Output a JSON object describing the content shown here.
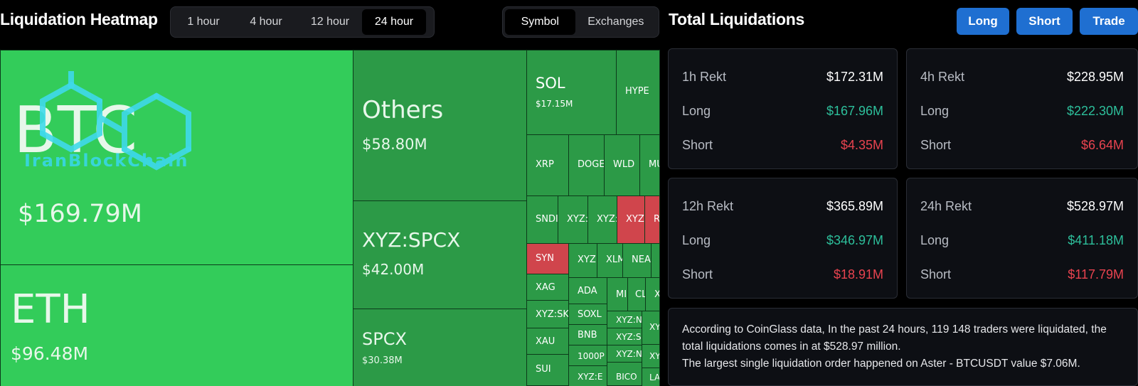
{
  "heatmap": {
    "title": "Liquidation Heatmap",
    "time_options": [
      "1 hour",
      "4 hour",
      "12 hour",
      "24 hour"
    ],
    "time_selected": "24 hour",
    "mode_options": [
      "Symbol",
      "Exchanges"
    ],
    "mode_selected": "Symbol",
    "watermark": "IranBlockChain",
    "tiles": [
      {
        "symbol": "BTC",
        "value": "$169.79M"
      },
      {
        "symbol": "ETH",
        "value": "$96.48M"
      },
      {
        "symbol": "Others",
        "value": "$58.80M"
      },
      {
        "symbol": "XYZ:SPCX",
        "value": "$42.00M"
      },
      {
        "symbol": "SPCX",
        "value": "$30.38M"
      },
      {
        "symbol": "SOL",
        "value": "$17.15M"
      },
      {
        "symbol": "HYPE",
        "value": ""
      },
      {
        "symbol": "XRP",
        "value": ""
      },
      {
        "symbol": "DOGE",
        "value": ""
      },
      {
        "symbol": "WLD",
        "value": ""
      },
      {
        "symbol": "MU",
        "value": ""
      },
      {
        "symbol": "SNDI",
        "value": ""
      },
      {
        "symbol": "XYZ:",
        "value": ""
      },
      {
        "symbol": "XYZ:",
        "value": ""
      },
      {
        "symbol": "XYZ:",
        "value": ""
      },
      {
        "symbol": "R",
        "value": ""
      },
      {
        "symbol": "SYN",
        "value": ""
      },
      {
        "symbol": "XYZ",
        "value": ""
      },
      {
        "symbol": "XLM",
        "value": ""
      },
      {
        "symbol": "NEA",
        "value": ""
      },
      {
        "symbol": "XAG",
        "value": ""
      },
      {
        "symbol": "ADA",
        "value": ""
      },
      {
        "symbol": "MI",
        "value": ""
      },
      {
        "symbol": "CL",
        "value": ""
      },
      {
        "symbol": "X",
        "value": ""
      },
      {
        "symbol": "XYZ:SK",
        "value": ""
      },
      {
        "symbol": "SOXL",
        "value": ""
      },
      {
        "symbol": "XYZ:N",
        "value": ""
      },
      {
        "symbol": "XY",
        "value": ""
      },
      {
        "symbol": "XAU",
        "value": ""
      },
      {
        "symbol": "BNB",
        "value": ""
      },
      {
        "symbol": "XYZ:S",
        "value": ""
      },
      {
        "symbol": "1000P",
        "value": ""
      },
      {
        "symbol": "XYZ:N",
        "value": ""
      },
      {
        "symbol": "XY",
        "value": ""
      },
      {
        "symbol": "SUI",
        "value": ""
      },
      {
        "symbol": "XYZ:E",
        "value": ""
      },
      {
        "symbol": "BICO",
        "value": ""
      },
      {
        "symbol": "LA",
        "value": ""
      }
    ]
  },
  "total": {
    "title": "Total Liquidations",
    "buttons": {
      "long": "Long",
      "short": "Short",
      "trade": "Trade"
    },
    "cards": [
      {
        "label": "1h Rekt",
        "total": "$172.31M",
        "long_label": "Long",
        "long": "$167.96M",
        "short_label": "Short",
        "short": "$4.35M"
      },
      {
        "label": "4h Rekt",
        "total": "$228.95M",
        "long_label": "Long",
        "long": "$222.30M",
        "short_label": "Short",
        "short": "$6.64M"
      },
      {
        "label": "12h Rekt",
        "total": "$365.89M",
        "long_label": "Long",
        "long": "$346.97M",
        "short_label": "Short",
        "short": "$18.91M"
      },
      {
        "label": "24h Rekt",
        "total": "$528.97M",
        "long_label": "Long",
        "long": "$411.18M",
        "short_label": "Short",
        "short": "$117.79M"
      }
    ],
    "summary_line1": "According to CoinGlass data, In the past 24 hours, 119 148 traders were liquidated, the total liquidations comes in at $528.97 million.",
    "summary_line2": "The largest single liquidation order happened on Aster - BTCUSDT value $7.06M."
  },
  "colors": {
    "long": "#2dbf9b",
    "short": "#e8434f",
    "button": "#1f6fd1",
    "tile_bright": "#33cc5a",
    "tile_mid": "#2eaa4d",
    "tile_dark": "#2c9a47",
    "tile_red": "#d0454c"
  }
}
